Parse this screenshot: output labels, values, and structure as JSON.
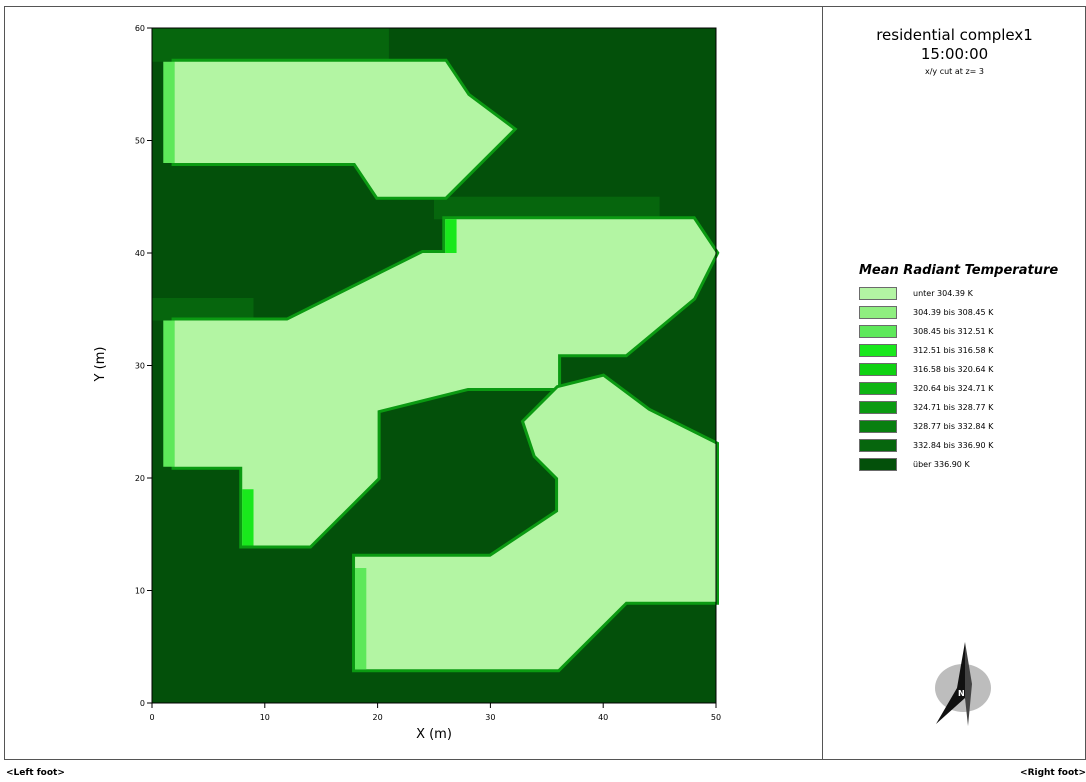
{
  "chart_data": {
    "type": "heatmap",
    "title": "residential complex1",
    "time": "15:00:00",
    "subtitle": "x/y cut at z= 3",
    "xlabel": "X (m)",
    "ylabel": "Y (m)",
    "xlim": [
      0,
      50
    ],
    "ylim": [
      0,
      60
    ],
    "x_ticks": [
      "0",
      "10",
      "20",
      "30",
      "40",
      "50"
    ],
    "y_ticks": [
      "0",
      "10",
      "20",
      "30",
      "40",
      "50",
      "60"
    ],
    "legend_title": "Mean Radiant Temperature",
    "legend_placement": "right",
    "legend": [
      {
        "label": "unter 304.39 K",
        "color": "#b3f5a3"
      },
      {
        "label": "304.39 bis 308.45 K",
        "color": "#8fef80"
      },
      {
        "label": "308.45 bis 312.51 K",
        "color": "#5ee85a"
      },
      {
        "label": "312.51 bis 316.58 K",
        "color": "#19e81c"
      },
      {
        "label": "316.58 bis 320.64 K",
        "color": "#0fd212"
      },
      {
        "label": "320.64 bis 324.71 K",
        "color": "#0eb514"
      },
      {
        "label": "324.71 bis 328.77 K",
        "color": "#0b9a12"
      },
      {
        "label": "328.77 bis 332.84 K",
        "color": "#087f10"
      },
      {
        "label": "332.84 bis 336.90 K",
        "color": "#06660d"
      },
      {
        "label": "über 336.90 K",
        "color": "#03500a"
      }
    ],
    "regions_m": [
      {
        "class": 0,
        "polygon": [
          [
            2,
            57
          ],
          [
            26,
            57
          ],
          [
            28,
            54
          ],
          [
            32,
            51
          ],
          [
            28,
            47
          ],
          [
            26,
            45
          ],
          [
            20,
            45
          ],
          [
            18,
            48
          ],
          [
            2,
            48
          ]
        ]
      },
      {
        "class": 0,
        "polygon": [
          [
            26,
            43
          ],
          [
            48,
            43
          ],
          [
            50,
            40
          ],
          [
            48,
            36
          ],
          [
            42,
            31
          ],
          [
            36,
            31
          ],
          [
            36,
            28
          ],
          [
            28,
            28
          ],
          [
            20,
            26
          ],
          [
            20,
            20
          ],
          [
            18,
            18
          ],
          [
            14,
            14
          ],
          [
            8,
            14
          ],
          [
            8,
            21
          ],
          [
            2,
            21
          ],
          [
            2,
            34
          ],
          [
            12,
            34
          ],
          [
            16,
            36
          ],
          [
            20,
            38
          ],
          [
            24,
            40
          ],
          [
            26,
            40
          ]
        ]
      },
      {
        "class": 0,
        "polygon": [
          [
            36,
            28
          ],
          [
            40,
            29
          ],
          [
            44,
            26
          ],
          [
            50,
            23
          ],
          [
            50,
            9
          ],
          [
            42,
            9
          ],
          [
            38,
            5
          ],
          [
            36,
            3
          ],
          [
            18,
            3
          ],
          [
            18,
            13
          ],
          [
            30,
            13
          ],
          [
            36,
            17
          ],
          [
            36,
            20
          ],
          [
            34,
            22
          ],
          [
            33,
            25
          ]
        ]
      }
    ]
  },
  "north_label": "N",
  "footer": {
    "left": "<Left foot>",
    "right": "<Right foot>"
  }
}
